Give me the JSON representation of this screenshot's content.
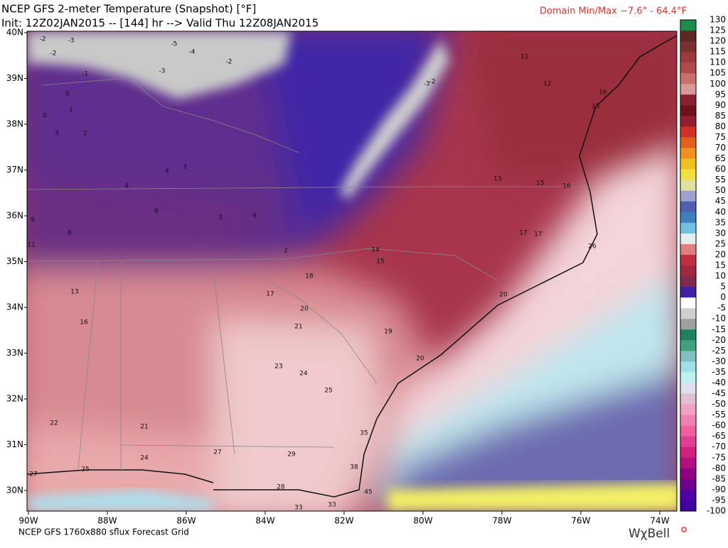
{
  "header": {
    "title": "NCEP GFS 2-meter Temperature (Snapshot) [°F]",
    "init_line": "Init: 12Z02JAN2015 -- [144] hr --> Valid Thu 12Z08JAN2015",
    "domain_minmax": "Domain Min/Max  −7.6°  -  64.4°F"
  },
  "map": {
    "lon_labels": [
      "90W",
      "88W",
      "86W",
      "84W",
      "82W",
      "80W",
      "78W",
      "76W",
      "74W"
    ],
    "lat_labels": [
      "40N",
      "39N",
      "38N",
      "37N",
      "36N",
      "35N",
      "34N",
      "33N",
      "32N",
      "31N",
      "30N"
    ],
    "stations": [
      -2,
      -3,
      -2,
      -4,
      -5,
      -2,
      -3,
      -1,
      0,
      1,
      0,
      3,
      2,
      3,
      4,
      4,
      6,
      8,
      9,
      11,
      3,
      9,
      2,
      -2,
      -3,
      11,
      12,
      15,
      16,
      13,
      15,
      16,
      17,
      17,
      20,
      26,
      14,
      15,
      18,
      17,
      13,
      16,
      20,
      21,
      19,
      20,
      23,
      24,
      25,
      22,
      21,
      27,
      29,
      28,
      33,
      33,
      38,
      45,
      35,
      27,
      25,
      24
    ]
  },
  "colorbar": {
    "labels": [
      130,
      125,
      120,
      115,
      110,
      105,
      100,
      95,
      90,
      85,
      80,
      75,
      70,
      65,
      60,
      55,
      50,
      45,
      40,
      35,
      30,
      25,
      20,
      15,
      10,
      5,
      0,
      -5,
      -10,
      -15,
      -20,
      -25,
      -30,
      -35,
      -40,
      -45,
      -50,
      -55,
      -60,
      -65,
      -70,
      -75,
      -80,
      -85,
      -90,
      -95,
      -100
    ]
  },
  "footer": {
    "source": "NCEP GFS 1760x880 sflux Forecast Grid",
    "logo": "WχBell"
  }
}
